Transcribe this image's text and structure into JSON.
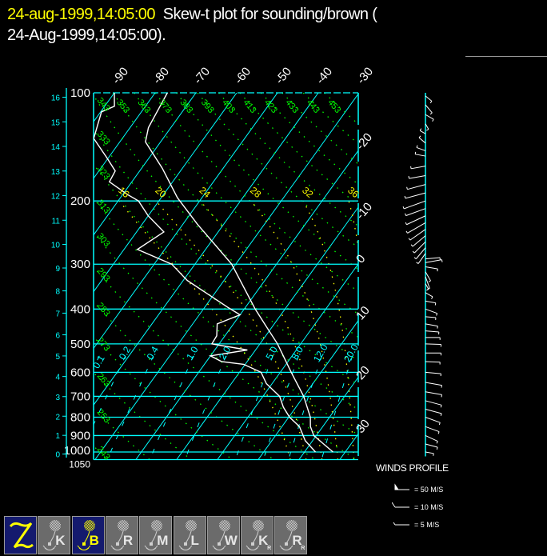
{
  "header": {
    "date_label": "24-aug-1999,14:05:00",
    "title_line1": "Skew-t plot for sounding/brown (",
    "title_line2": "24-Aug-1999,14:05:00)."
  },
  "colors": {
    "isotherm_isobar": "#00ffff",
    "dry_adiabat": "#00ff00",
    "moist_adiabat": "#ffff00",
    "mixing_ratio": "#00ffff",
    "trace": "#ffffff",
    "date": "#ffff00"
  },
  "chart_data": {
    "type": "line",
    "subtype": "skew-t log-p",
    "pressure_ticks": [
      100,
      200,
      300,
      400,
      500,
      600,
      700,
      800,
      900,
      1000,
      1050
    ],
    "pressure_range": [
      100,
      1050
    ],
    "height_ticks_km": [
      0,
      1,
      2,
      3,
      4,
      5,
      6,
      7,
      8,
      9,
      10,
      11,
      12,
      13,
      14,
      15,
      16
    ],
    "isotherm_top_labels": [
      -90,
      -80,
      -70,
      -60,
      -50,
      -40,
      -30
    ],
    "isotherm_right_labels": [
      -20,
      -10,
      0,
      10,
      20,
      30
    ],
    "dry_adiabat_labels_K": [
      243,
      253,
      263,
      273,
      283,
      293,
      303,
      313,
      323,
      333,
      343,
      353,
      363,
      373,
      383,
      393,
      403,
      413,
      423,
      433,
      443,
      453
    ],
    "moist_adiabat_labels": [
      16,
      20,
      24,
      28,
      32,
      36
    ],
    "mixing_ratio_labels": [
      "0.1",
      "0.2",
      "0.4",
      "1.0",
      "2.0",
      "5.0",
      "8.0",
      "12.0",
      "20.0"
    ],
    "series": [
      {
        "kind": "temperature",
        "points": [
          [
            100,
            -77
          ],
          [
            125,
            -75.5
          ],
          [
            137,
            -73.7
          ],
          [
            162,
            -65
          ],
          [
            196,
            -56
          ],
          [
            232,
            -46.5
          ],
          [
            300,
            -31
          ],
          [
            400,
            -17.3
          ],
          [
            450,
            -11.2
          ],
          [
            500,
            -5.7
          ],
          [
            600,
            2.7
          ],
          [
            700,
            10
          ],
          [
            800,
            15.3
          ],
          [
            850,
            17
          ],
          [
            900,
            19.4
          ],
          [
            1000,
            27
          ]
        ]
      },
      {
        "kind": "dewpoint",
        "points": [
          [
            100,
            -90
          ],
          [
            109,
            -87.6
          ],
          [
            113,
            -89.8
          ],
          [
            134,
            -87
          ],
          [
            151,
            -80.6
          ],
          [
            165,
            -76
          ],
          [
            177,
            -75.5
          ],
          [
            192,
            -68.8
          ],
          [
            200,
            -65
          ],
          [
            220,
            -60
          ],
          [
            244,
            -53.3
          ],
          [
            273,
            -56.7
          ],
          [
            300,
            -45.7
          ],
          [
            333,
            -39
          ],
          [
            397,
            -24
          ],
          [
            415,
            -20
          ],
          [
            440,
            -24
          ],
          [
            475,
            -22
          ],
          [
            500,
            -21.8
          ],
          [
            520,
            -12
          ],
          [
            540,
            -20
          ],
          [
            560,
            -16.3
          ],
          [
            570,
            -10.4
          ],
          [
            600,
            -4.7
          ],
          [
            645,
            -1.4
          ],
          [
            700,
            4.1
          ],
          [
            750,
            6.9
          ],
          [
            800,
            10.2
          ],
          [
            850,
            14.3
          ],
          [
            930,
            18.2
          ],
          [
            1000,
            22.7
          ]
        ]
      }
    ],
    "winds": [
      [
        102,
        130,
        8
      ],
      [
        108,
        140,
        10
      ],
      [
        115,
        120,
        9
      ],
      [
        122,
        150,
        6
      ],
      [
        130,
        300,
        6
      ],
      [
        138,
        310,
        8
      ],
      [
        145,
        290,
        9
      ],
      [
        150,
        280,
        10
      ],
      [
        160,
        260,
        14
      ],
      [
        170,
        260,
        16
      ],
      [
        180,
        255,
        18
      ],
      [
        190,
        255,
        20
      ],
      [
        200,
        250,
        22
      ],
      [
        210,
        250,
        20
      ],
      [
        220,
        245,
        20
      ],
      [
        230,
        240,
        20
      ],
      [
        240,
        235,
        18
      ],
      [
        250,
        230,
        16
      ],
      [
        260,
        225,
        15
      ],
      [
        270,
        220,
        14
      ],
      [
        280,
        215,
        12
      ],
      [
        290,
        85,
        14
      ],
      [
        297,
        80,
        16
      ],
      [
        305,
        100,
        12
      ],
      [
        315,
        150,
        10
      ],
      [
        325,
        160,
        12
      ],
      [
        340,
        150,
        6
      ],
      [
        360,
        120,
        8
      ],
      [
        380,
        100,
        10
      ],
      [
        400,
        110,
        12
      ],
      [
        420,
        95,
        10
      ],
      [
        440,
        100,
        12
      ],
      [
        460,
        95,
        13
      ],
      [
        480,
        90,
        14
      ],
      [
        500,
        92,
        15
      ],
      [
        530,
        90,
        15
      ],
      [
        560,
        92,
        14
      ],
      [
        600,
        95,
        15
      ],
      [
        640,
        100,
        16
      ],
      [
        680,
        100,
        16
      ],
      [
        720,
        105,
        16
      ],
      [
        760,
        105,
        16
      ],
      [
        800,
        110,
        15
      ],
      [
        850,
        110,
        14
      ],
      [
        900,
        115,
        13
      ],
      [
        950,
        105,
        12
      ],
      [
        1000,
        100,
        8
      ]
    ]
  },
  "wind_legend": {
    "title": "WINDS PROFILE",
    "items": [
      {
        "label": "= 50 M/S"
      },
      {
        "label": "= 10 M/S"
      },
      {
        "label": "= 5 M/S"
      }
    ]
  },
  "toolbar": {
    "buttons": [
      {
        "letter": "Z",
        "active": true
      },
      {
        "letter": "K",
        "sub": ""
      },
      {
        "letter": "B",
        "sub": "",
        "active": true
      },
      {
        "letter": "R",
        "sub": ""
      },
      {
        "letter": "M",
        "sub": ""
      },
      {
        "letter": "L",
        "sub": ""
      },
      {
        "letter": "W",
        "sub": ""
      },
      {
        "letter": "K",
        "sub": "R"
      },
      {
        "letter": "R",
        "sub": "R"
      }
    ]
  }
}
